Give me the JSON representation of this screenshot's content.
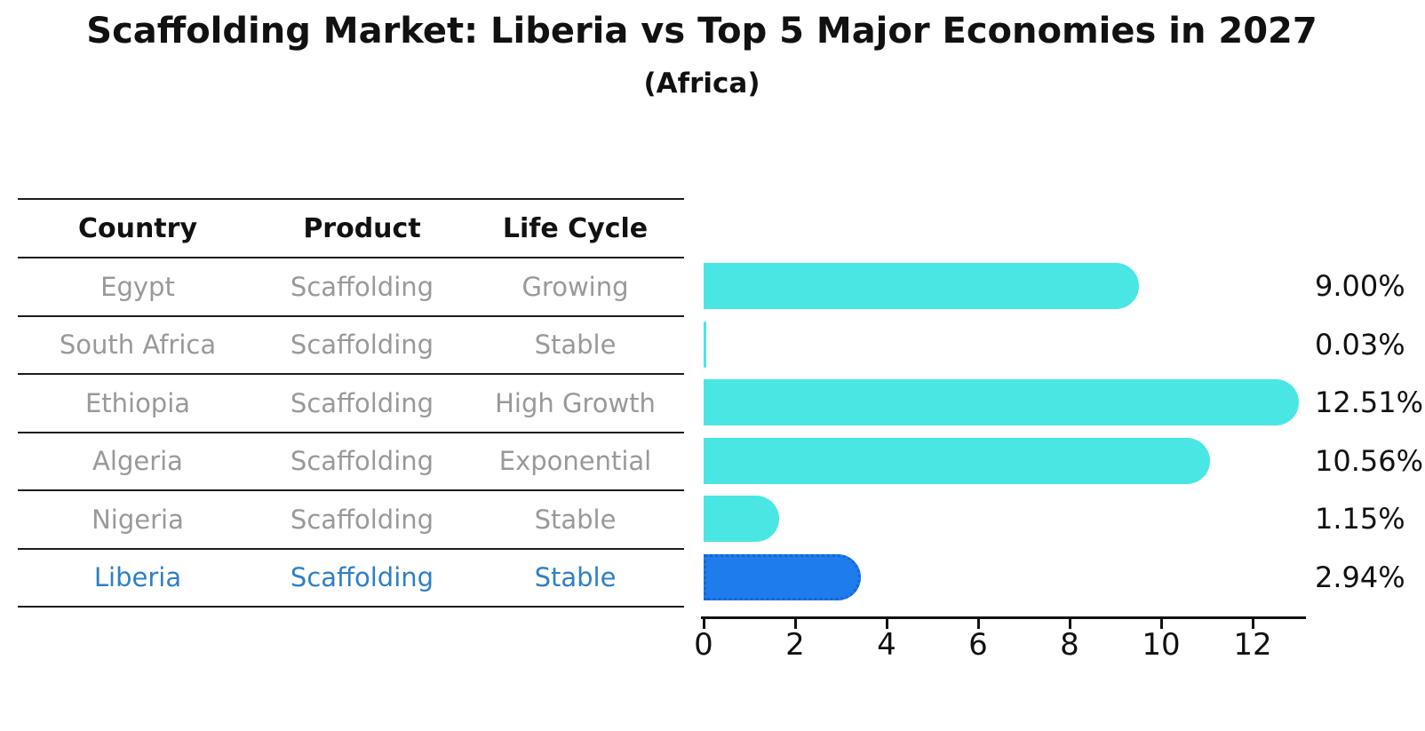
{
  "title": "Scaffolding Market: Liberia vs Top 5 Major Economies in 2027",
  "subtitle": "(Africa)",
  "table": {
    "headers": [
      "Country",
      "Product",
      "Life Cycle"
    ],
    "rows": [
      {
        "country": "Egypt",
        "product": "Scaffolding",
        "life_cycle": "Growing",
        "highlight": false
      },
      {
        "country": "South Africa",
        "product": "Scaffolding",
        "life_cycle": "Stable",
        "highlight": false
      },
      {
        "country": "Ethiopia",
        "product": "Scaffolding",
        "life_cycle": "High Growth",
        "highlight": false
      },
      {
        "country": "Algeria",
        "product": "Scaffolding",
        "life_cycle": "Exponential",
        "highlight": false
      },
      {
        "country": "Nigeria",
        "product": "Scaffolding",
        "life_cycle": "Stable",
        "highlight": false
      },
      {
        "country": "Liberia",
        "product": "Scaffolding",
        "life_cycle": "Stable",
        "highlight": true
      }
    ]
  },
  "chart_data": {
    "type": "bar",
    "orientation": "horizontal",
    "title": "Scaffolding Market: Liberia vs Top 5 Major Economies in 2027",
    "subtitle": "(Africa)",
    "categories": [
      "Egypt",
      "South Africa",
      "Ethiopia",
      "Algeria",
      "Nigeria",
      "Liberia"
    ],
    "values": [
      9.0,
      0.03,
      12.51,
      10.56,
      1.15,
      2.94
    ],
    "value_labels": [
      "9.00%",
      "0.03%",
      "12.51%",
      "10.56%",
      "1.15%",
      "2.94%"
    ],
    "x_ticks": [
      0,
      2,
      4,
      6,
      8,
      10,
      12
    ],
    "xlim": [
      0,
      13.2
    ],
    "xlabel": "",
    "ylabel": "",
    "grid": false,
    "legend": false,
    "highlight_category": "Liberia",
    "colors": {
      "bar": "#49E6E3",
      "highlight_bar": "#1E7CEC",
      "highlight_border": "#1565D8",
      "highlight_text": "#2E7FC6",
      "row_text": "#999999",
      "axis": "#111111"
    }
  }
}
